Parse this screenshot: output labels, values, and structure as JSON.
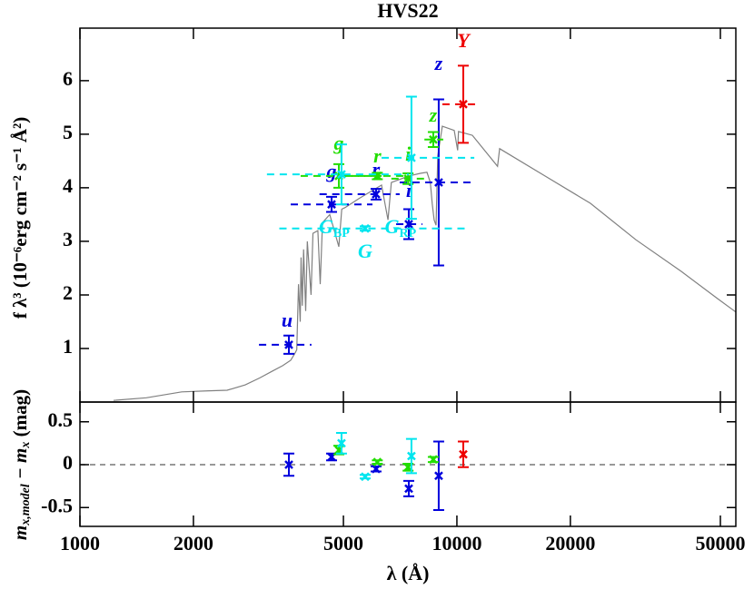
{
  "chart_data": [
    {
      "type": "line",
      "title": "HVS22",
      "y_label": "f λ³ (10⁻⁶erg cm⁻² s⁻¹ Å²)",
      "log_x": true,
      "xlim": [
        1000,
        54950
      ],
      "ylim": [
        0,
        6.98
      ],
      "yticks": [
        1,
        2,
        3,
        4,
        5,
        6
      ],
      "series": [
        {
          "color": "#808080",
          "x": [
            1228,
            1500,
            1862,
            2200,
            2457,
            2745,
            3000,
            3243,
            3450,
            3623,
            3726,
            3760,
            3800,
            3840,
            3860,
            3890,
            3920,
            3970,
            4010,
            4102,
            4150,
            4278,
            4340,
            4400,
            4600,
            4861,
            4950,
            5053,
            5500,
            6312,
            6563,
            6700,
            7453,
            8000,
            8329,
            8500,
            8600,
            8700,
            8802,
            8900,
            9150,
            9835,
            10050,
            10100,
            10990,
            12820,
            12980,
            17130,
            22600,
            29840,
            39360,
            49170,
            54950
          ],
          "values": [
            0.03,
            0.08,
            0.19,
            0.21,
            0.22,
            0.32,
            0.45,
            0.58,
            0.68,
            0.78,
            0.92,
            0.98,
            2.2,
            1.5,
            2.7,
            1.8,
            2.85,
            1.7,
            3.0,
            2.0,
            3.15,
            3.2,
            2.2,
            3.35,
            3.5,
            2.9,
            3.6,
            3.63,
            3.8,
            4.05,
            3.4,
            4.1,
            4.22,
            4.27,
            4.29,
            4.1,
            3.7,
            3.4,
            3.3,
            4.6,
            5.15,
            5.07,
            4.7,
            5.05,
            4.98,
            4.4,
            4.73,
            4.22,
            3.71,
            3.03,
            2.44,
            1.93,
            1.68
          ]
        }
      ],
      "photometry": [
        {
          "label": "u",
          "color": "#0000dd",
          "x": 3583,
          "value": 1.07,
          "error": 0.17,
          "xmin": 2985,
          "xmax": 4113
        },
        {
          "label": "g",
          "color": "#0000dd",
          "x": 4651,
          "value": 3.69,
          "error": 0.14,
          "xmin": 3623,
          "xmax": 5970
        },
        {
          "label": "r",
          "color": "#0000dd",
          "x": 6103,
          "value": 3.88,
          "error": 0.1,
          "xmin": 4320,
          "xmax": 7050
        },
        {
          "label": "i",
          "color": "#0000dd",
          "x": 7453,
          "value": 3.32,
          "error": 0.28,
          "xmin": 6900,
          "xmax": 8100
        },
        {
          "label": "z",
          "color": "#0000dd",
          "x": 8949,
          "value": 4.1,
          "error": 1.55,
          "xmin": 7050,
          "xmax": 11000
        },
        {
          "label": "Y",
          "color": "#ee0000",
          "x": 10397,
          "value": 5.56,
          "error": 0.72,
          "xmin": 9150,
          "xmax": 11200
        },
        {
          "label": "g",
          "color": "#22dd00",
          "x": 4862,
          "value": 4.22,
          "error": 0.22,
          "xmin": 3850,
          "xmax": 6312
        },
        {
          "label": "r",
          "color": "#22dd00",
          "x": 6150,
          "value": 4.22,
          "error": 0.06,
          "xmin": 5053,
          "xmax": 7453
        },
        {
          "label": "i",
          "color": "#22dd00",
          "x": 7420,
          "value": 4.17,
          "error": 0.1,
          "xmin": 6700,
          "xmax": 8329
        },
        {
          "label": "z",
          "color": "#22dd00",
          "x": 8657,
          "value": 4.9,
          "error": 0.14,
          "xmin": 8200,
          "xmax": 9200
        },
        {
          "label": "G",
          "color": "#00e5ee",
          "x": 5710,
          "value": 3.24,
          "error": 0.04,
          "xmin": 3380,
          "xmax": 10500
        },
        {
          "label": "G",
          "sub": "BP",
          "color": "#00e5ee",
          "x": 4942,
          "value": 4.25,
          "error": 0.56,
          "xmin": 3134,
          "xmax": 7453
        },
        {
          "label": "G",
          "sub": "RP",
          "color": "#00e5ee",
          "x": 7576,
          "value": 4.56,
          "error": 1.14,
          "xmin": 6312,
          "xmax": 11120
        }
      ]
    },
    {
      "type": "scatter",
      "y_label": [
        {
          "text": "m"
        },
        {
          "text": "x,model",
          "sub": true
        },
        {
          "text": " − m"
        },
        {
          "text": "x",
          "sub": true
        },
        {
          "text": " (mag)"
        }
      ],
      "x_label": "λ (Å)",
      "log_x": true,
      "xlim": [
        1000,
        54950
      ],
      "xticks": [
        1000,
        2000,
        5000,
        10000,
        20000,
        50000
      ],
      "ylim": [
        -0.72,
        0.73
      ],
      "yticks": [
        -0.5,
        0,
        0.5
      ],
      "baseline": 0,
      "points": [
        {
          "color": "#0000dd",
          "x": 3583,
          "value": 0.0,
          "error": 0.13
        },
        {
          "color": "#0000dd",
          "x": 4651,
          "value": 0.09,
          "error": 0.04
        },
        {
          "color": "#0000dd",
          "x": 6103,
          "value": -0.05,
          "error": 0.03
        },
        {
          "color": "#0000dd",
          "x": 7453,
          "value": -0.28,
          "error": 0.09
        },
        {
          "color": "#0000dd",
          "x": 8949,
          "value": -0.13,
          "error": 0.4
        },
        {
          "color": "#ee0000",
          "x": 10397,
          "value": 0.12,
          "error": 0.15
        },
        {
          "color": "#22dd00",
          "x": 4862,
          "value": 0.17,
          "error": 0.05
        },
        {
          "color": "#22dd00",
          "x": 6150,
          "value": 0.03,
          "error": 0.02
        },
        {
          "color": "#22dd00",
          "x": 7420,
          "value": -0.03,
          "error": 0.04
        },
        {
          "color": "#22dd00",
          "x": 8657,
          "value": 0.06,
          "error": 0.03
        },
        {
          "color": "#00e5ee",
          "x": 5710,
          "value": -0.14,
          "error": 0.02
        },
        {
          "color": "#00e5ee",
          "x": 4942,
          "value": 0.25,
          "error": 0.12
        },
        {
          "color": "#00e5ee",
          "x": 7576,
          "value": 0.1,
          "error": 0.2
        }
      ]
    }
  ]
}
